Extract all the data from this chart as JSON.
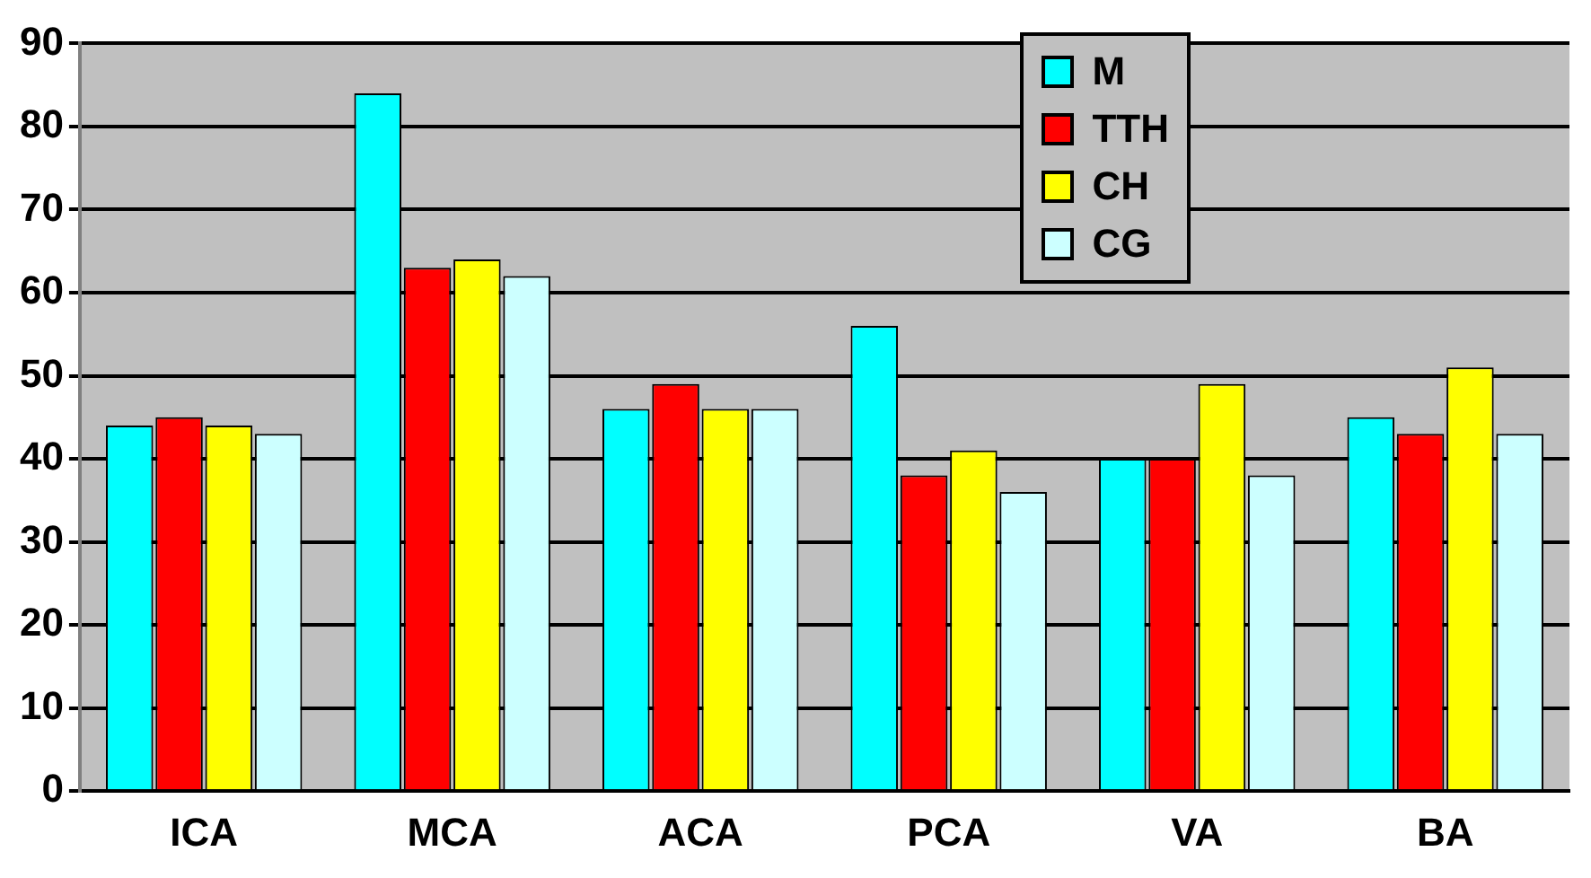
{
  "chart_data": {
    "type": "bar",
    "categories": [
      "ICA",
      "MCA",
      "ACA",
      "PCA",
      "VA",
      "BA"
    ],
    "series": [
      {
        "name": "M",
        "color": "#00ffff",
        "values": [
          44,
          84,
          46,
          56,
          40,
          45
        ]
      },
      {
        "name": "TTH",
        "color": "#ff0000",
        "values": [
          45,
          63,
          49,
          38,
          40,
          43
        ]
      },
      {
        "name": "CH",
        "color": "#ffff00",
        "values": [
          44,
          64,
          46,
          41,
          49,
          51
        ]
      },
      {
        "name": "CG",
        "color": "#ccffff",
        "values": [
          43,
          62,
          46,
          36,
          38,
          43
        ]
      }
    ],
    "ylim": [
      0,
      90
    ],
    "yticks": [
      0,
      10,
      20,
      30,
      40,
      50,
      60,
      70,
      80,
      90
    ],
    "grid": "y",
    "legend": "top right"
  }
}
